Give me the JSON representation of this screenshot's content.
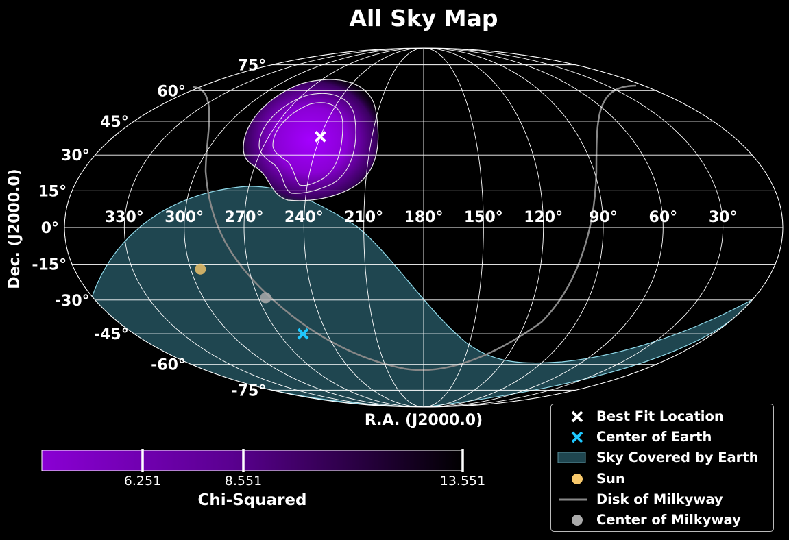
{
  "chart_data": {
    "type": "scatter",
    "projection": "mollweide",
    "title": "All Sky Map",
    "xlabel": "R.A. (J2000.0)",
    "ylabel": "Dec. (J2000.0)",
    "ra_tick_labels": [
      "330°",
      "300°",
      "270°",
      "240°",
      "210°",
      "180°",
      "150°",
      "120°",
      "90°",
      "60°",
      "30°"
    ],
    "ra_tick_values": [
      330,
      300,
      270,
      240,
      210,
      180,
      150,
      120,
      90,
      60,
      30
    ],
    "dec_tick_labels": [
      "75°",
      "60°",
      "45°",
      "30°",
      "15°",
      "0°",
      "-15°",
      "-30°",
      "-45°",
      "-60°",
      "-75°"
    ],
    "dec_tick_values": [
      75,
      60,
      45,
      30,
      15,
      0,
      -15,
      -30,
      -45,
      -60,
      -75
    ],
    "grid": true,
    "points": {
      "best_fit": {
        "ra": 240,
        "dec": 38
      },
      "center_of_earth": {
        "ra": 255,
        "dec": -45
      },
      "sun": {
        "ra": 295,
        "dec": -17
      },
      "center_of_milkyway": {
        "ra": 266,
        "dec": -29
      }
    },
    "colorbar": {
      "label": "Chi-Squared",
      "ticks": [
        "6.251",
        "8.551",
        "13.551"
      ],
      "tick_values": [
        6.251,
        8.551,
        13.551
      ],
      "min": 3.3,
      "colors": [
        "#8a00d4",
        "#000000"
      ]
    },
    "legend": {
      "position": "lower right",
      "entries": [
        {
          "label": "Best Fit Location",
          "color": "#ffffff"
        },
        {
          "label": "Center of Earth",
          "color": "#1ec8ff"
        },
        {
          "label": "Sky Covered by Earth",
          "color": "#1f4650"
        },
        {
          "label": "Sun",
          "color": "#f7c86b"
        },
        {
          "label": "Disk of Milkyway",
          "color": "#888888"
        },
        {
          "label": "Center of Milkyway",
          "color": "#aaaaaa"
        }
      ]
    }
  }
}
